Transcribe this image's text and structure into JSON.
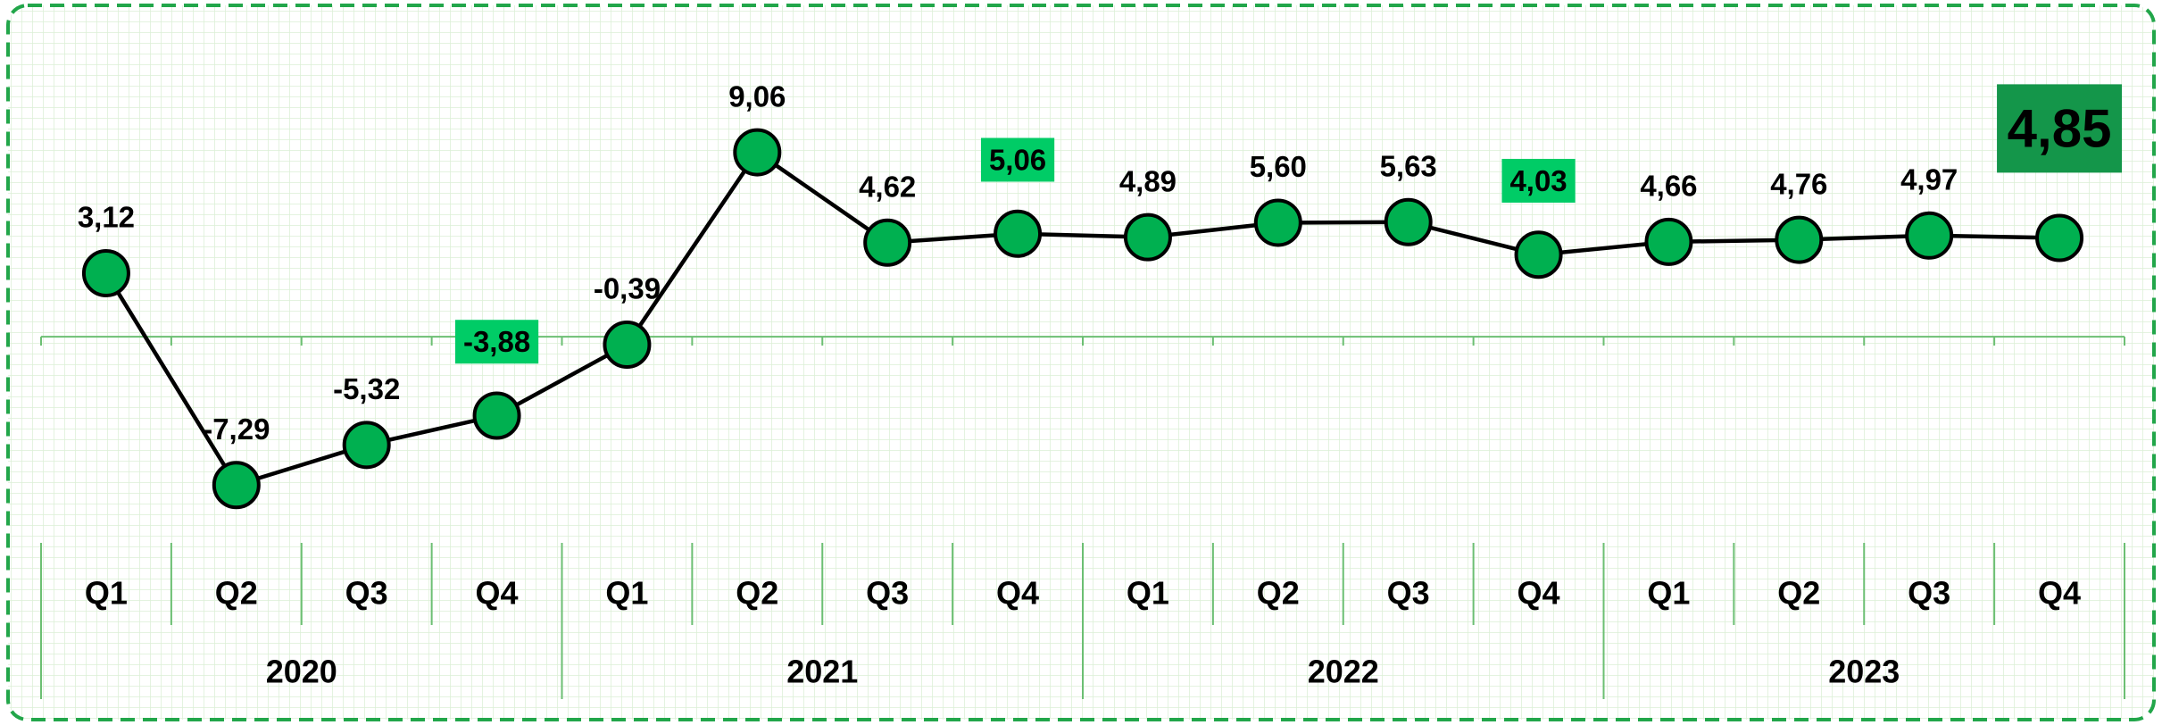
{
  "chart_data": {
    "type": "line",
    "categories": [
      "Q1",
      "Q2",
      "Q3",
      "Q4",
      "Q1",
      "Q2",
      "Q3",
      "Q4",
      "Q1",
      "Q2",
      "Q3",
      "Q4",
      "Q1",
      "Q2",
      "Q3",
      "Q4"
    ],
    "groups": [
      {
        "label": "2020",
        "span": 4
      },
      {
        "label": "2021",
        "span": 4
      },
      {
        "label": "2022",
        "span": 4
      },
      {
        "label": "2023",
        "span": 4
      }
    ],
    "values": [
      3.12,
      -7.29,
      -5.32,
      -3.88,
      -0.39,
      9.06,
      4.62,
      5.06,
      4.89,
      5.6,
      5.63,
      4.03,
      4.66,
      4.76,
      4.97,
      4.85
    ],
    "value_labels": [
      "3,12",
      "-7,29",
      "-5,32",
      "-3,88",
      "-0,39",
      "9,06",
      "4,62",
      "5,06",
      "4,89",
      "5,60",
      "5,63",
      "4,03",
      "4,66",
      "4,76",
      "4,97",
      "4,85"
    ],
    "ylim": [
      -10,
      14
    ],
    "color": "#00b050",
    "line_color": "#000000",
    "highlighted_points": [
      3,
      7,
      11
    ],
    "highlight_color": "#00cc66",
    "emphasized_point": 15,
    "emphasis_color": "#14964a"
  }
}
